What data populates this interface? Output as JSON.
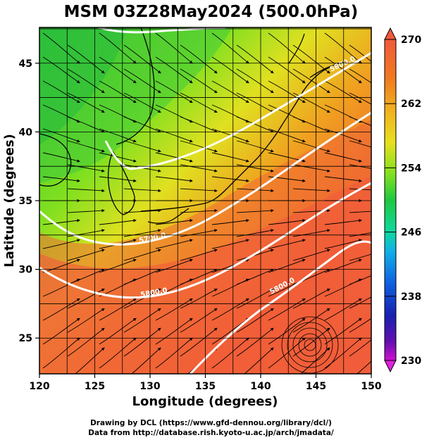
{
  "title": "MSM 03Z28May2024 (500.0hPa)",
  "credits": {
    "line1": "Drawing by DCL (https://www.gfd-dennou.org/library/dcl/)",
    "line2": "Data from http://database.rish.kyoto-u.ac.jp/arch/jmadata/"
  },
  "axes": {
    "xlabel": "Longitude (degrees)",
    "ylabel": "Latitude  (degrees)",
    "xlim": [
      120,
      150
    ],
    "ylim": [
      22.4,
      47.6
    ],
    "xticks": [
      "120",
      "125",
      "130",
      "135",
      "140",
      "145",
      "150"
    ],
    "yticks": [
      "25",
      "30",
      "35",
      "40",
      "45"
    ]
  },
  "colorbar": {
    "min": 230,
    "max": 270,
    "ticks": [
      "270",
      "262",
      "254",
      "246",
      "238",
      "230"
    ],
    "colors": [
      "#f05a3c",
      "#f07a20",
      "#f0b020",
      "#e8e020",
      "#80e020",
      "#20c840",
      "#10d8a0",
      "#10b0e8",
      "#1060e0",
      "#1820b0",
      "#6010b0",
      "#d010d0"
    ]
  },
  "contours": [
    {
      "label": "5700.0"
    },
    {
      "label": "5800.0"
    },
    {
      "label": "5800.0"
    },
    {
      "label": "5800.0"
    }
  ],
  "chart_data": {
    "type": "heatmap",
    "title": "MSM 03Z28May2024 (500.0hPa)",
    "xlabel": "Longitude (degrees)",
    "ylabel": "Latitude  (degrees)",
    "xlim": [
      120,
      150
    ],
    "ylim": [
      22.4,
      47.6
    ],
    "colorbar_range": [
      230,
      270
    ],
    "colorbar_ticks": [
      270,
      262,
      254,
      246,
      238,
      230
    ],
    "height_contours_m": [
      5700.0,
      5800.0
    ],
    "grid": true,
    "overlay": "wind streamlines"
  }
}
